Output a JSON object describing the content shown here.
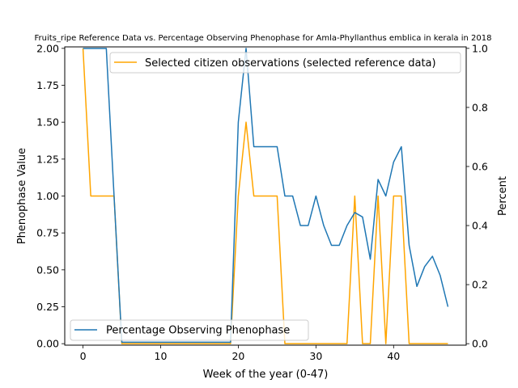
{
  "chart_data": {
    "type": "line",
    "title": "Fruits_ripe Reference Data vs. Percentage Observing Phenophase for Amla-Phyllanthus emblica in kerala in 2018",
    "xlabel": "Week of the year (0-47)",
    "ylabel_left": "Phenophase Value",
    "ylabel_right": "Percent",
    "xlim": [
      -2.35,
      49.35
    ],
    "ylim_left": [
      -0.01,
      2.01
    ],
    "ylim_right": [
      -0.005,
      1.005
    ],
    "x_ticks": [
      0,
      10,
      20,
      30,
      40
    ],
    "y_ticks_left": [
      "0.00",
      "0.25",
      "0.50",
      "0.75",
      "1.00",
      "1.25",
      "1.50",
      "1.75",
      "2.00"
    ],
    "y_ticks_right": [
      "0.0",
      "0.2",
      "0.4",
      "0.6",
      "0.8",
      "1.0"
    ],
    "grid": false,
    "series": [
      {
        "name": "Selected citizen observations (selected reference data)",
        "axis": "left",
        "color": "#ffa500",
        "legend_position": "upper right",
        "x": [
          0,
          1,
          2,
          3,
          4,
          5,
          6,
          7,
          8,
          9,
          10,
          11,
          12,
          13,
          14,
          15,
          16,
          17,
          18,
          19,
          20,
          21,
          22,
          23,
          24,
          25,
          26,
          27,
          28,
          29,
          30,
          31,
          32,
          33,
          34,
          35,
          36,
          37,
          38,
          39,
          40,
          41,
          42,
          43,
          44,
          45,
          46,
          47
        ],
        "values": [
          2,
          1,
          1,
          1,
          1,
          0,
          0,
          0,
          0,
          0,
          0,
          0,
          0,
          0,
          0,
          0,
          0,
          0,
          0,
          0,
          1,
          1.5,
          1,
          1,
          1,
          1,
          0,
          0,
          0,
          0,
          0,
          0,
          0,
          0,
          0,
          1,
          0,
          0,
          1,
          0,
          1,
          1,
          0,
          0,
          0,
          0,
          0,
          0
        ]
      },
      {
        "name": "Percentage Observing Phenophase",
        "axis": "right",
        "color": "#1f77b4",
        "legend_position": "lower left",
        "x": [
          0,
          1,
          2,
          3,
          4,
          5,
          6,
          7,
          8,
          9,
          10,
          11,
          12,
          13,
          14,
          15,
          16,
          17,
          18,
          19,
          20,
          21,
          22,
          23,
          24,
          25,
          26,
          27,
          28,
          29,
          30,
          31,
          32,
          33,
          34,
          35,
          36,
          37,
          38,
          39,
          40,
          41,
          42,
          43,
          44,
          45,
          46,
          47
        ],
        "values": [
          1,
          1,
          1,
          1,
          0.5,
          0.005,
          0.005,
          0.005,
          0.005,
          0.005,
          0.005,
          0.005,
          0.005,
          0.005,
          0.005,
          0.005,
          0.005,
          0.005,
          0.005,
          0.005,
          0.75,
          1,
          0.667,
          0.667,
          0.667,
          0.667,
          0.5,
          0.5,
          0.4,
          0.4,
          0.5,
          0.4,
          0.333,
          0.333,
          0.4,
          0.444,
          0.429,
          0.286,
          0.556,
          0.5,
          0.615,
          0.667,
          0.333,
          0.194,
          0.261,
          0.296,
          0.231,
          0.125
        ]
      }
    ]
  }
}
